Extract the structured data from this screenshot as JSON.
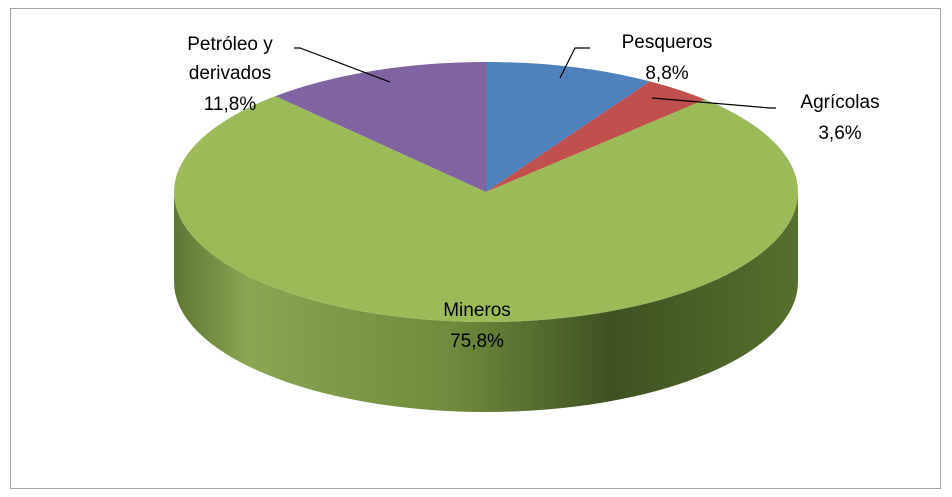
{
  "chart_data": {
    "type": "pie",
    "categories": [
      "Pesqueros",
      "Agrícolas",
      "Mineros",
      "Petróleo y derivados"
    ],
    "values": [
      8.8,
      3.6,
      75.8,
      11.8
    ],
    "value_labels": [
      "8,8%",
      "3,6%",
      "75,8%",
      "11,8%"
    ],
    "colors": [
      "#4f81bd",
      "#c0504d",
      "#9bbb59",
      "#8064a2"
    ]
  }
}
